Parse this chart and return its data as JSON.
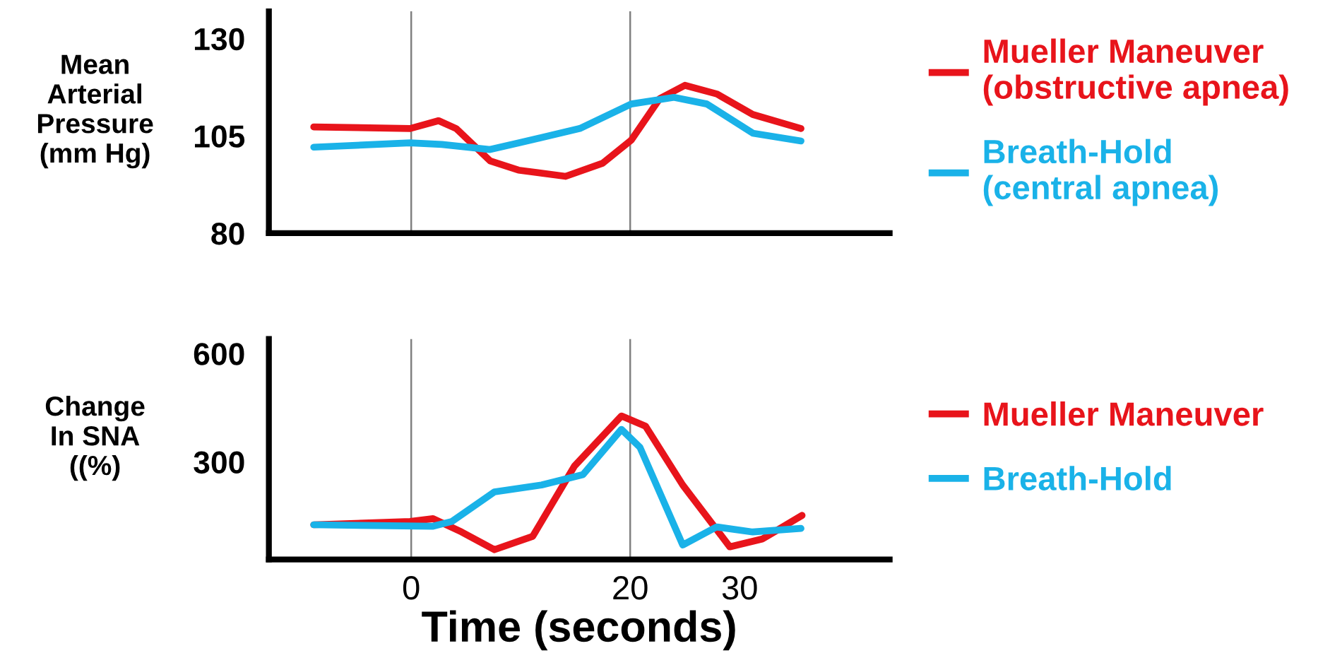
{
  "chart_data": [
    {
      "type": "line",
      "ylabel": "Mean\nArterial\nPressure\n(mm Hg)",
      "xlim": [
        -13,
        43.7
      ],
      "ylim": [
        80,
        137
      ],
      "yticks": [
        80,
        105,
        130
      ],
      "tick_labels": "y",
      "legend": "right",
      "grid": false,
      "ref_lines": [
        {
          "axis": "x",
          "value": 0,
          "color": "#808080"
        },
        {
          "axis": "x",
          "value": 20,
          "color": "#808080"
        }
      ],
      "series": [
        {
          "name": "Mueller Maneuver\n(obstructive apnea)",
          "color": "#e8141b",
          "x": [
            -8.9,
            -0.1,
            2.5,
            4.1,
            7.2,
            9.8,
            14.1,
            17.5,
            20.1,
            22.7,
            25.0,
            27.9,
            31.2,
            35.6
          ],
          "values": [
            107.3,
            106.9,
            108.9,
            106.9,
            98.6,
            96.2,
            94.6,
            98,
            103.9,
            114.6,
            118,
            115.8,
            110.5,
            106.9
          ]
        },
        {
          "name": "Breath-Hold\n(central apnea)",
          "color": "#1ab2e8",
          "x": [
            -8.9,
            -0.1,
            2.8,
            7.2,
            9.8,
            15.4,
            20.1,
            24.0,
            27.0,
            31.2,
            35.6
          ],
          "values": [
            102.1,
            103.2,
            102.8,
            101.5,
            103.2,
            106.9,
            113.2,
            114.9,
            113.2,
            105.7,
            103.7
          ]
        }
      ]
    },
    {
      "type": "line",
      "ylabel": "Change\nIn SNA\n((%)",
      "xlabel": "Time (seconds)",
      "xlim": [
        -13,
        43.7
      ],
      "ylim": [
        30,
        640
      ],
      "xticks": [
        0,
        20,
        30
      ],
      "yticks": [
        300,
        600
      ],
      "legend": "right",
      "grid": false,
      "ref_lines": [
        {
          "axis": "x",
          "value": 0,
          "color": "#808080"
        },
        {
          "axis": "x",
          "value": 20,
          "color": "#808080"
        }
      ],
      "series": [
        {
          "name": "Mueller Maneuver",
          "color": "#e8141b",
          "x": [
            -8.9,
            -0.1,
            2.0,
            4.6,
            7.6,
            11.1,
            14.9,
            19.2,
            21.4,
            24.8,
            29.1,
            32.1,
            35.7
          ],
          "values": [
            126,
            135,
            143,
            106,
            57,
            94,
            288,
            427,
            399,
            236,
            65,
            87,
            152
          ]
        },
        {
          "name": "Breath-Hold",
          "color": "#1ab2e8",
          "x": [
            -8.9,
            2.0,
            3.7,
            7.6,
            11.9,
            15.7,
            19.2,
            20.9,
            24.8,
            27.9,
            31.2,
            35.6
          ],
          "values": [
            126,
            122,
            135,
            217,
            236,
            265,
            390,
            340,
            70,
            120,
            106,
            116
          ]
        }
      ]
    }
  ]
}
